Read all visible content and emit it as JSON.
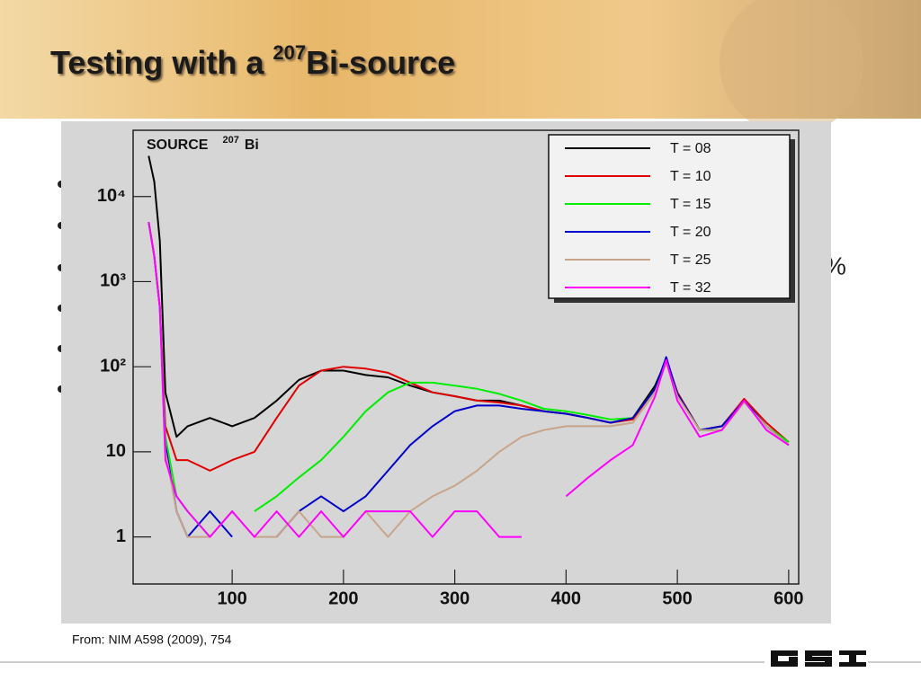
{
  "slide": {
    "title": {
      "prefix": "Testing with a ",
      "superscript": "207",
      "suffix": "Bi-source"
    },
    "bullet_fragment": "%",
    "source_note": "From: NIM A598 (2009), 754"
  },
  "chart_data": {
    "type": "line",
    "annotation": {
      "text": "SOURCE",
      "superscript": "207",
      "element": "Bi"
    },
    "x": [
      25,
      30,
      35,
      40,
      50,
      60,
      80,
      100,
      120,
      140,
      160,
      180,
      200,
      220,
      240,
      260,
      280,
      300,
      320,
      340,
      360,
      380,
      400,
      420,
      440,
      460,
      480,
      490,
      500,
      520,
      540,
      560,
      580,
      600
    ],
    "xlim": [
      11,
      609
    ],
    "xticks": [
      100,
      200,
      300,
      400,
      500,
      600
    ],
    "ylim": [
      0.28,
      60000
    ],
    "log_y": true,
    "yticks": [
      1,
      10,
      {
        "value": 100,
        "label": "10²"
      },
      {
        "value": 1000,
        "label": "10³"
      },
      {
        "value": 10000,
        "label": "10⁴"
      }
    ],
    "legend": "upper right",
    "series": [
      {
        "name": "T = 08",
        "color": "#000000",
        "values": [
          30000,
          15000,
          3000,
          50,
          15,
          20,
          25,
          20,
          25,
          40,
          70,
          90,
          90,
          80,
          75,
          60,
          50,
          45,
          40,
          40,
          35,
          30,
          28,
          25,
          22,
          25,
          60,
          120,
          50,
          18,
          20,
          40,
          20,
          12
        ]
      },
      {
        "name": "T = 10",
        "color": "#e00000",
        "values": [
          5000,
          2000,
          500,
          20,
          8,
          8,
          6,
          8,
          10,
          25,
          60,
          90,
          100,
          95,
          85,
          65,
          50,
          45,
          40,
          38,
          35,
          30,
          28,
          25,
          22,
          24,
          55,
          125,
          50,
          18,
          20,
          42,
          22,
          13
        ]
      },
      {
        "name": "T = 15",
        "color": "#00ee00",
        "values": [
          5000,
          2000,
          500,
          15,
          3,
          2,
          1,
          null,
          2,
          3,
          5,
          8,
          15,
          30,
          50,
          65,
          65,
          60,
          55,
          48,
          40,
          32,
          30,
          27,
          24,
          25,
          55,
          120,
          48,
          18,
          18,
          40,
          20,
          13
        ]
      },
      {
        "name": "T = 20",
        "color": "#0000cc",
        "values": [
          5000,
          2000,
          500,
          12,
          2,
          1,
          2,
          1,
          null,
          1,
          2,
          3,
          2,
          3,
          6,
          12,
          20,
          30,
          35,
          35,
          32,
          30,
          28,
          25,
          22,
          25,
          55,
          130,
          48,
          18,
          20,
          40,
          20,
          12
        ]
      },
      {
        "name": "T = 25",
        "color": "#c8a48a",
        "values": [
          5000,
          2000,
          500,
          10,
          2,
          1,
          1,
          2,
          1,
          1,
          2,
          1,
          1,
          2,
          1,
          2,
          3,
          4,
          6,
          10,
          15,
          18,
          20,
          20,
          20,
          22,
          50,
          110,
          45,
          18,
          18,
          38,
          20,
          12
        ]
      },
      {
        "name": "T = 32",
        "color": "#ff00ff",
        "values": [
          5000,
          2000,
          500,
          8,
          3,
          2,
          1,
          2,
          1,
          2,
          1,
          2,
          1,
          2,
          2,
          2,
          1,
          2,
          2,
          1,
          1,
          null,
          3,
          5,
          8,
          12,
          45,
          120,
          40,
          15,
          18,
          40,
          18,
          12
        ]
      }
    ]
  }
}
